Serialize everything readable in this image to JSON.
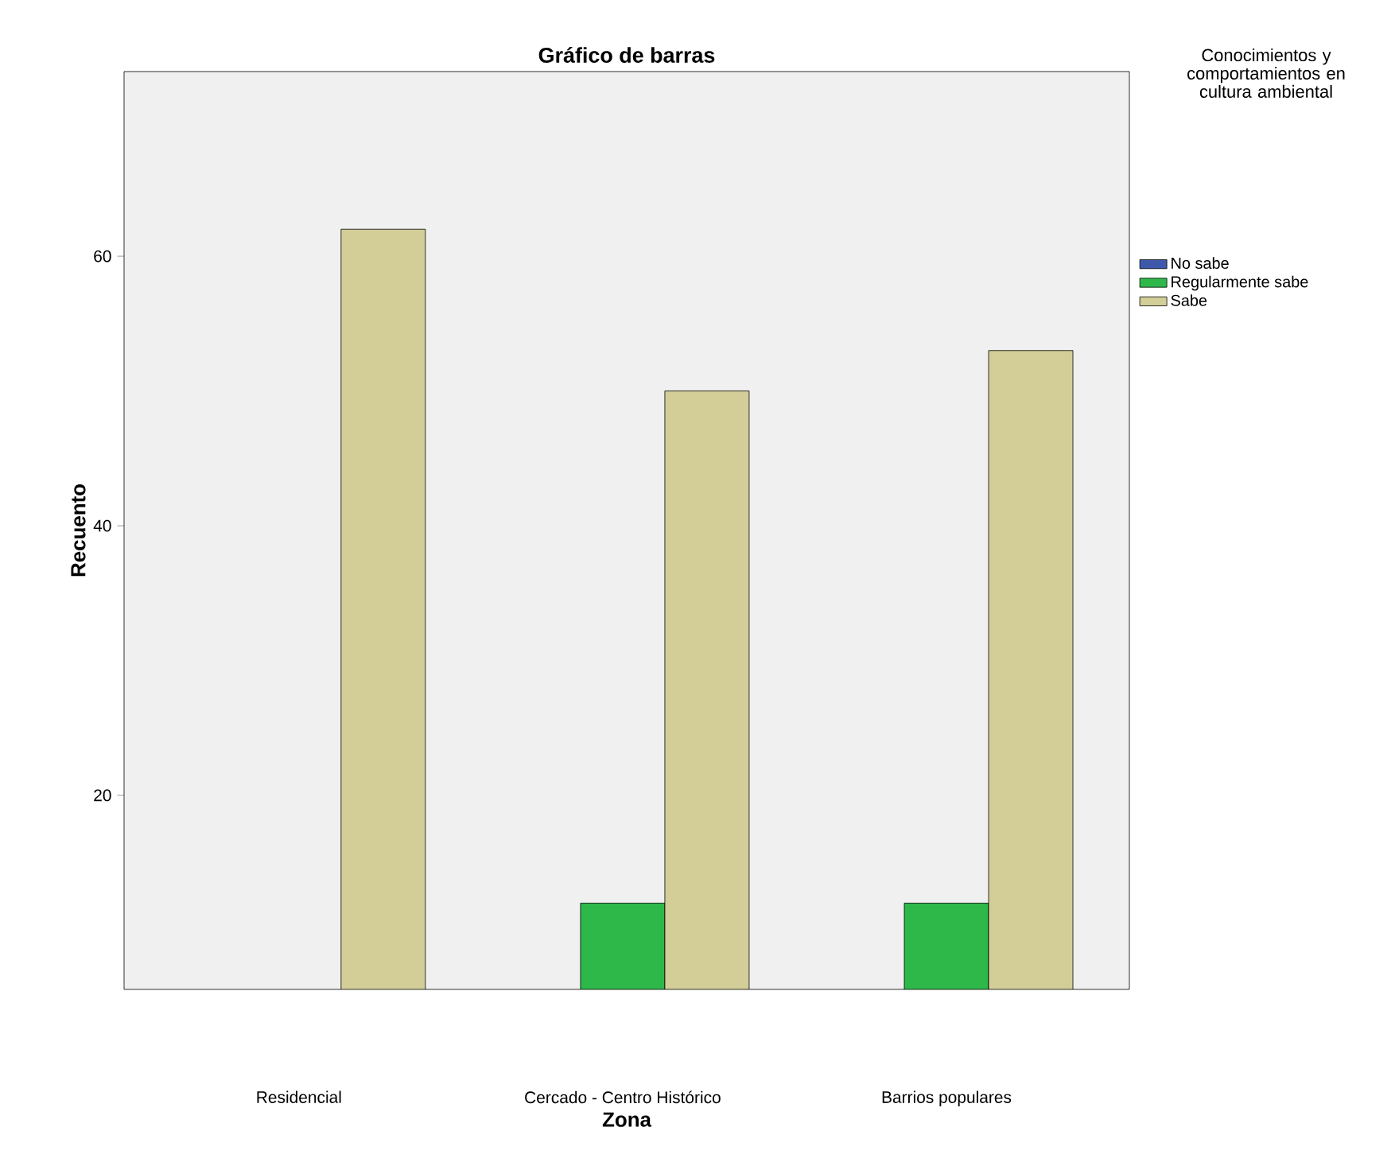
{
  "chart_data": {
    "type": "bar",
    "title": "Gráfico de barras",
    "xlabel": "Zona",
    "ylabel": "Recuento",
    "legend_title": "Conocimientos y comportamientos en cultura ambiental",
    "categories": [
      "Residencial",
      "Cercado - Centro Histórico",
      "Barrios populares"
    ],
    "series": [
      {
        "name": "No sabe",
        "color": "#3e58ac",
        "values": [
          null,
          null,
          null
        ]
      },
      {
        "name": "Regularmente sabe",
        "color": "#2fb84a",
        "values": [
          null,
          12,
          12
        ]
      },
      {
        "name": "Sabe",
        "color": "#d3ce97",
        "values": [
          62,
          50,
          53
        ]
      }
    ],
    "ylim": [
      5.6,
      73.7
    ],
    "yticks": [
      20,
      40,
      60
    ],
    "grid": false,
    "legend": "top right"
  }
}
